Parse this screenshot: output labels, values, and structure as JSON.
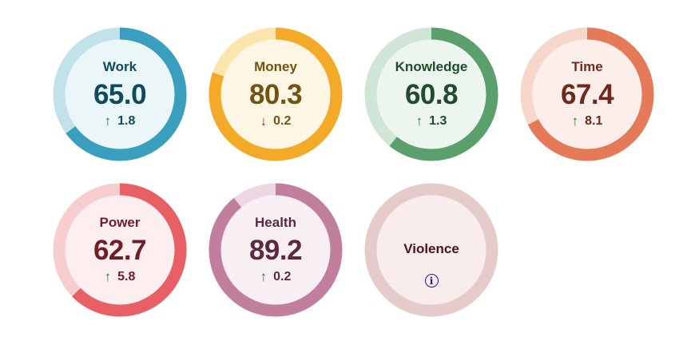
{
  "cards": [
    {
      "label": "Work",
      "score": "65.0",
      "value": 65.0,
      "arrow": "↑",
      "dir": "up",
      "change": "1.8",
      "colors": {
        "track": "#c2e2ea",
        "ring": "#3a9fbf",
        "fill": "#eaf6f8",
        "text": "#0f4a5e"
      }
    },
    {
      "label": "Money",
      "score": "80.3",
      "value": 80.3,
      "arrow": "↓",
      "dir": "down",
      "change": "0.2",
      "colors": {
        "track": "#fbe5ad",
        "ring": "#f3aa28",
        "fill": "#fdf6e4",
        "text": "#735312"
      }
    },
    {
      "label": "Knowledge",
      "score": "60.8",
      "value": 60.8,
      "arrow": "↑",
      "dir": "up",
      "change": "1.3",
      "colors": {
        "track": "#cfe5d5",
        "ring": "#5a9f6c",
        "fill": "#edf5ef",
        "text": "#204b2c"
      }
    },
    {
      "label": "Time",
      "score": "67.4",
      "value": 67.4,
      "arrow": "↑",
      "dir": "up",
      "change": "8.1",
      "colors": {
        "track": "#f7d6cc",
        "ring": "#e47a57",
        "fill": "#fcefeb",
        "text": "#6f2a1a"
      }
    },
    {
      "label": "Power",
      "score": "62.7",
      "value": 62.7,
      "arrow": "↑",
      "dir": "up",
      "change": "5.8",
      "colors": {
        "track": "#f7cdd0",
        "ring": "#e85f66",
        "fill": "#fdeef0",
        "text": "#6e1e24"
      }
    },
    {
      "label": "Health",
      "score": "89.2",
      "value": 89.2,
      "arrow": "↑",
      "dir": "up",
      "change": "0.2",
      "colors": {
        "track": "#ecd7e2",
        "ring": "#c27e9d",
        "fill": "#f8eff3",
        "text": "#5b2940"
      }
    }
  ],
  "violence": {
    "label": "Violence",
    "icon": "info-icon",
    "info_glyph": "i",
    "colors": {
      "ring": "#e5cbca",
      "fill": "#f8ecec",
      "text": "#4a1518"
    }
  }
}
